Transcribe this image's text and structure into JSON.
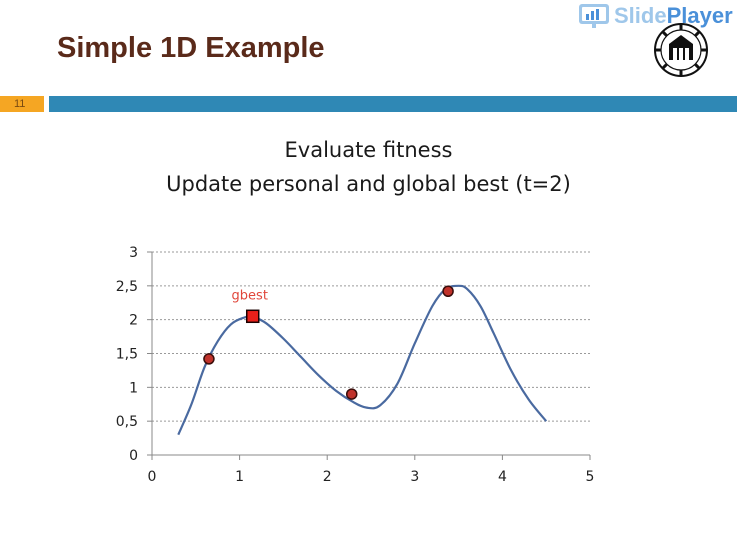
{
  "slide": {
    "title": "Simple 1D Example",
    "number": "11",
    "subtitle_line1": "Evaluate fitness",
    "subtitle_line2": "Update personal and global best (t=2)",
    "brand_part1": "Slide",
    "brand_part2": "Player"
  },
  "colors": {
    "title": "#5a2a1a",
    "accent_orange": "#f5a623",
    "accent_blue": "#2f88b5",
    "curve": "#4a6aa0",
    "particle_fill": "#c0322b",
    "gbest_fill": "#e8201a",
    "gbest_label": "#e0463a"
  },
  "chart_data": {
    "type": "line",
    "xlim": [
      0,
      5
    ],
    "ylim": [
      0,
      3
    ],
    "x_ticks": [
      "0",
      "1",
      "2",
      "3",
      "4",
      "5"
    ],
    "y_ticks": [
      "0",
      "0,5",
      "1",
      "1,5",
      "2",
      "2,5",
      "3"
    ],
    "grid": "horizontal-dashed",
    "series": [
      {
        "type": "line",
        "x": [
          0.3,
          0.45,
          0.6,
          0.75,
          0.9,
          1.05,
          1.15,
          1.3,
          1.5,
          1.7,
          1.9,
          2.1,
          2.3,
          2.45,
          2.6,
          2.8,
          3.0,
          3.2,
          3.35,
          3.5,
          3.6,
          3.75,
          3.9,
          4.1,
          4.3,
          4.5
        ],
        "y": [
          0.3,
          0.75,
          1.3,
          1.68,
          1.93,
          2.03,
          2.04,
          1.95,
          1.72,
          1.45,
          1.18,
          0.95,
          0.78,
          0.7,
          0.73,
          1.05,
          1.65,
          2.2,
          2.45,
          2.5,
          2.45,
          2.2,
          1.8,
          1.25,
          0.82,
          0.5
        ]
      }
    ],
    "particles": [
      {
        "x": 0.65,
        "y": 1.42
      },
      {
        "x": 2.28,
        "y": 0.9
      },
      {
        "x": 3.38,
        "y": 2.42
      }
    ],
    "gbest": {
      "x": 1.15,
      "y": 2.05,
      "label": "gbest"
    }
  }
}
